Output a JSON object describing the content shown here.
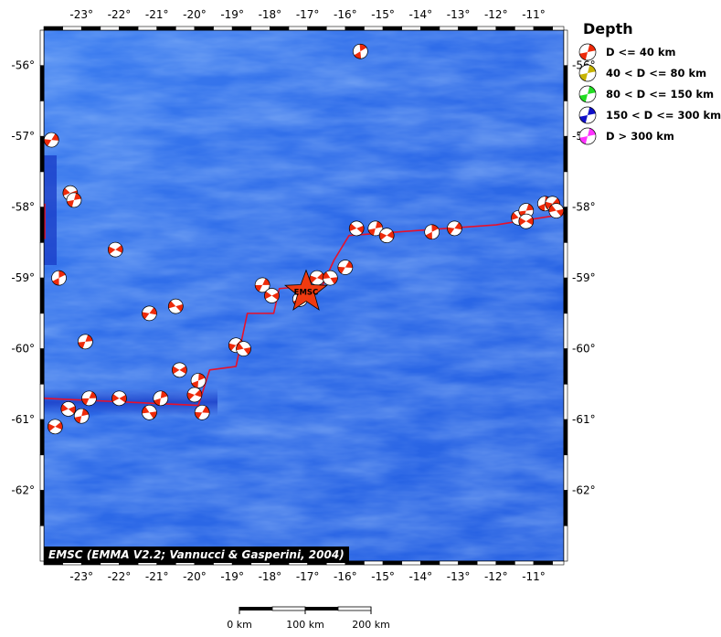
{
  "map": {
    "lon_range": [
      -24,
      -10.2
    ],
    "lat_range": [
      -63,
      -55.5
    ],
    "lon_ticks": [
      {
        "value": -23,
        "label": "-23°"
      },
      {
        "value": -22,
        "label": "-22°"
      },
      {
        "value": -21,
        "label": "-21°"
      },
      {
        "value": -20,
        "label": "-20°"
      },
      {
        "value": -19,
        "label": "-19°"
      },
      {
        "value": -18,
        "label": "-18°"
      },
      {
        "value": -17,
        "label": "-17°"
      },
      {
        "value": -16,
        "label": "-16°"
      },
      {
        "value": -15,
        "label": "-15°"
      },
      {
        "value": -14,
        "label": "-14°"
      },
      {
        "value": -13,
        "label": "-13°"
      },
      {
        "value": -12,
        "label": "-12°"
      },
      {
        "value": -11,
        "label": "-11°"
      }
    ],
    "lat_ticks": [
      {
        "value": -56,
        "label": "-56°"
      },
      {
        "value": -57,
        "label": "-57°"
      },
      {
        "value": -58,
        "label": "-58°"
      },
      {
        "value": -59,
        "label": "-59°"
      },
      {
        "value": -60,
        "label": "-60°"
      },
      {
        "value": -61,
        "label": "-61°"
      },
      {
        "value": -62,
        "label": "-62°"
      }
    ],
    "colors": {
      "ocean": "#2a66e6",
      "ocean_deep": "#1a3fcf",
      "plate_boundary": "#e8102a",
      "mechanism_fill": "#ee2a0a",
      "frame_dark": "#000000"
    },
    "epicenter": {
      "lon": -17.04,
      "lat": -59.2,
      "label": "EMSC",
      "marker": "star-icon"
    },
    "plate_boundary": [
      [
        -24,
        -60.7
      ],
      [
        -19.9,
        -60.8
      ],
      [
        -19.6,
        -60.3
      ],
      [
        -18.9,
        -60.25
      ],
      [
        -18.6,
        -59.5
      ],
      [
        -17.9,
        -59.5
      ],
      [
        -17.75,
        -59.15
      ],
      [
        -16.6,
        -59.1
      ],
      [
        -16.3,
        -58.75
      ],
      [
        -15.9,
        -58.4
      ],
      [
        -15.9,
        -58.4
      ],
      [
        -12.0,
        -58.25
      ],
      [
        -10.2,
        -58.1
      ]
    ],
    "focal_mechanisms": [
      {
        "lon": -15.6,
        "lat": -55.8
      },
      {
        "lon": -23.8,
        "lat": -57.05
      },
      {
        "lon": -23.3,
        "lat": -57.8
      },
      {
        "lon": -23.2,
        "lat": -57.9
      },
      {
        "lon": -22.1,
        "lat": -58.6
      },
      {
        "lon": -23.6,
        "lat": -59.0
      },
      {
        "lon": -21.2,
        "lat": -59.5
      },
      {
        "lon": -20.5,
        "lat": -59.4
      },
      {
        "lon": -22.9,
        "lat": -59.9
      },
      {
        "lon": -20.4,
        "lat": -60.3
      },
      {
        "lon": -19.9,
        "lat": -60.45
      },
      {
        "lon": -18.9,
        "lat": -59.95
      },
      {
        "lon": -18.7,
        "lat": -60.0
      },
      {
        "lon": -18.2,
        "lat": -59.1
      },
      {
        "lon": -17.95,
        "lat": -59.25
      },
      {
        "lon": -17.2,
        "lat": -59.3
      },
      {
        "lon": -16.75,
        "lat": -59.0
      },
      {
        "lon": -16.4,
        "lat": -59.0
      },
      {
        "lon": -16.0,
        "lat": -58.85
      },
      {
        "lon": -15.7,
        "lat": -58.3
      },
      {
        "lon": -15.2,
        "lat": -58.3
      },
      {
        "lon": -14.9,
        "lat": -58.4
      },
      {
        "lon": -13.7,
        "lat": -58.35
      },
      {
        "lon": -13.1,
        "lat": -58.3
      },
      {
        "lon": -11.4,
        "lat": -58.15
      },
      {
        "lon": -11.2,
        "lat": -58.05
      },
      {
        "lon": -11.2,
        "lat": -58.2
      },
      {
        "lon": -10.7,
        "lat": -57.95
      },
      {
        "lon": -10.5,
        "lat": -57.95
      },
      {
        "lon": -10.4,
        "lat": -58.05
      },
      {
        "lon": -22.8,
        "lat": -60.7
      },
      {
        "lon": -22.0,
        "lat": -60.7
      },
      {
        "lon": -20.9,
        "lat": -60.7
      },
      {
        "lon": -20.0,
        "lat": -60.65
      },
      {
        "lon": -21.2,
        "lat": -60.9
      },
      {
        "lon": -19.8,
        "lat": -60.9
      },
      {
        "lon": -23.35,
        "lat": -60.85
      },
      {
        "lon": -23.0,
        "lat": -60.95
      },
      {
        "lon": -23.7,
        "lat": -61.1
      }
    ]
  },
  "legend": {
    "title": "Depth",
    "items": [
      {
        "label": "D <= 40 km",
        "color": "#ee2a0a",
        "icon": "beachball-red-icon"
      },
      {
        "label": "40 < D <= 80 km",
        "color": "#c8b400",
        "icon": "beachball-yellow-icon"
      },
      {
        "label": "80 < D <= 150 km",
        "color": "#22dd22",
        "icon": "beachball-green-icon"
      },
      {
        "label": "150 < D <= 300 km",
        "color": "#1010c8",
        "icon": "beachball-blue-icon"
      },
      {
        "label": "D > 300 km",
        "color": "#ff33ff",
        "icon": "beachball-magenta-icon"
      }
    ]
  },
  "credit": "EMSC (EMMA V2.2; Vannucci & Gasperini, 2004)",
  "scale_bar": {
    "labels": [
      "0 km",
      "100 km",
      "200 km"
    ]
  }
}
